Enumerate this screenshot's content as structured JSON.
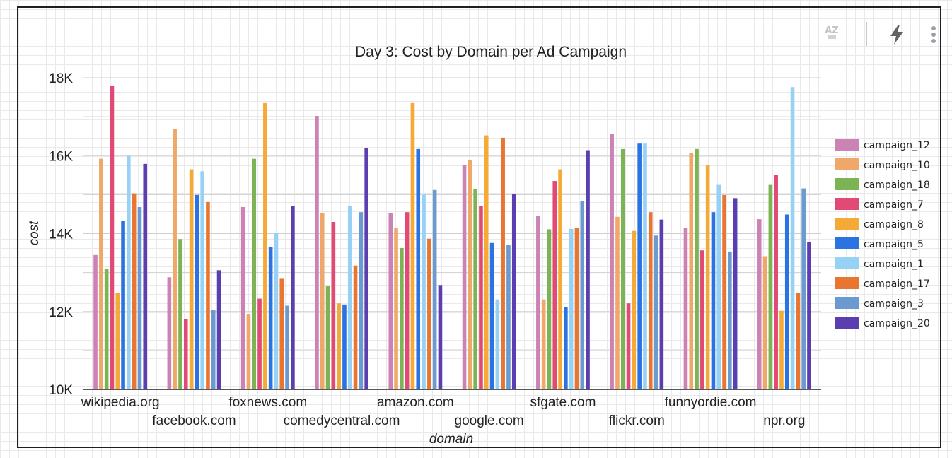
{
  "toolbar": {
    "sort_icon": "sort-az-icon",
    "sort_text": "AZ",
    "action_icon": "lightning-bolt-icon",
    "menu_icon": "more-vert-icon"
  },
  "colors": {
    "campaign_12": "#cd82b6",
    "campaign_10": "#f0a76a",
    "campaign_18": "#7cb455",
    "campaign_7": "#e04a74",
    "campaign_8": "#f5aa38",
    "campaign_5": "#2b73e3",
    "campaign_1": "#97d2f6",
    "campaign_17": "#e97630",
    "campaign_3": "#6a9ad0",
    "campaign_20": "#5b3fb0"
  },
  "chart_data": {
    "type": "bar",
    "title": "Day 3: Cost by Domain per Ad Campaign",
    "xlabel": "domain",
    "ylabel": "cost",
    "ylim": [
      10000,
      18000
    ],
    "yticks": [
      10000,
      12000,
      14000,
      16000,
      18000
    ],
    "ytick_labels": [
      "10K",
      "12K",
      "14K",
      "16K",
      "18K"
    ],
    "grid": true,
    "legend_position": "right",
    "categories": [
      "wikipedia.org",
      "facebook.com",
      "foxnews.com",
      "comedycentral.com",
      "amazon.com",
      "google.com",
      "sfgate.com",
      "flickr.com",
      "funnyordie.com",
      "npr.org"
    ],
    "series": [
      {
        "name": "campaign_12",
        "values": [
          13450,
          12880,
          14680,
          17020,
          14520,
          15770,
          14460,
          16550,
          14150,
          14370
        ]
      },
      {
        "name": "campaign_10",
        "values": [
          15920,
          16680,
          11940,
          14520,
          14150,
          15880,
          12310,
          14430,
          16060,
          13420
        ]
      },
      {
        "name": "campaign_18",
        "values": [
          13100,
          13860,
          15920,
          12650,
          13630,
          15150,
          14110,
          16170,
          16170,
          15250
        ]
      },
      {
        "name": "campaign_7",
        "values": [
          17800,
          11800,
          12330,
          14300,
          14550,
          14710,
          15350,
          12210,
          13570,
          15510
        ]
      },
      {
        "name": "campaign_8",
        "values": [
          12470,
          15650,
          17350,
          12210,
          17350,
          16520,
          15650,
          14070,
          15760,
          12020
        ]
      },
      {
        "name": "campaign_5",
        "values": [
          14330,
          14990,
          13660,
          12180,
          16170,
          13760,
          12120,
          16310,
          14550,
          14490
        ]
      },
      {
        "name": "campaign_1",
        "values": [
          15990,
          15600,
          14010,
          14710,
          15000,
          12310,
          14120,
          16310,
          15250,
          17760
        ]
      },
      {
        "name": "campaign_17",
        "values": [
          15030,
          14810,
          12840,
          13180,
          13870,
          16460,
          14150,
          14550,
          14990,
          12470
        ]
      },
      {
        "name": "campaign_3",
        "values": [
          14680,
          12040,
          12150,
          14550,
          15120,
          13700,
          14840,
          13950,
          13540,
          15160
        ]
      },
      {
        "name": "campaign_20",
        "values": [
          15790,
          13060,
          14710,
          16200,
          12680,
          15020,
          16140,
          14360,
          14910,
          13790
        ]
      }
    ]
  }
}
